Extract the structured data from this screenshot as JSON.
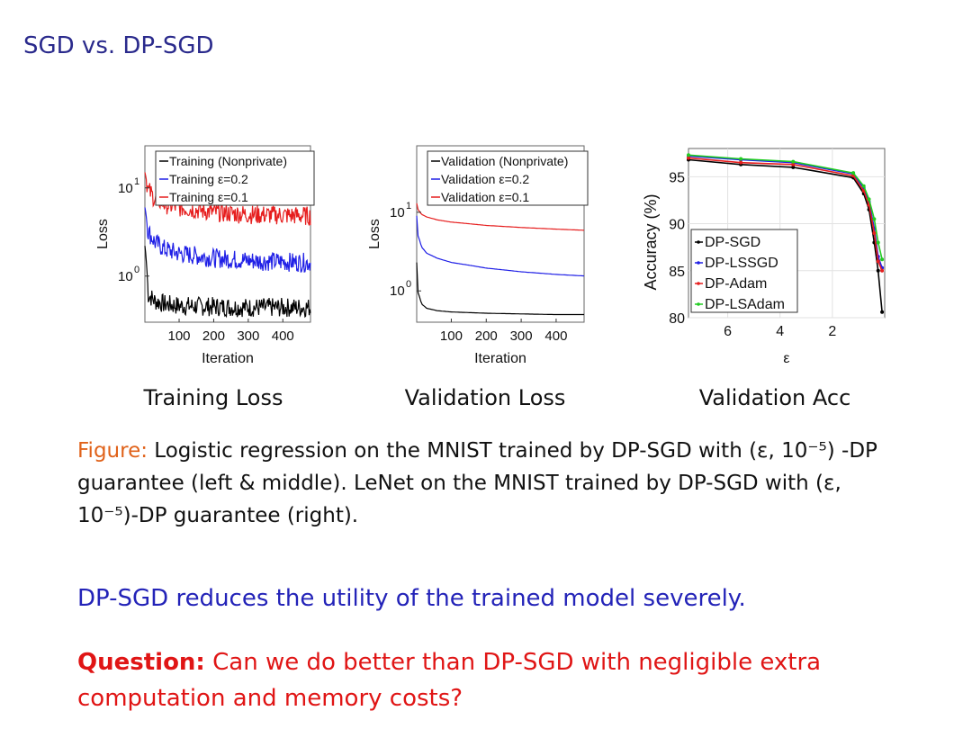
{
  "slide": {
    "title": "SGD vs. DP-SGD",
    "subplot_captions": [
      "Training Loss",
      "Validation Loss",
      "Validation Acc"
    ],
    "figure_caption_lead": "Figure:",
    "figure_caption_body": "Logistic regression on the MNIST trained by DP-SGD with (ε, 10⁻⁵) -DP guarantee (left & middle). LeNet on the MNIST trained by DP-SGD with (ε, 10⁻⁵)-DP guarantee (right).",
    "takeaway": "DP-SGD reduces the utility of the trained model severely.",
    "question_label": "Question:",
    "question_text": "Can we do better than DP-SGD with negligible extra computation and memory costs?"
  },
  "colors": {
    "title": "#2a2a8c",
    "caption_lead": "#e0621a",
    "takeaway": "#2323b8",
    "question": "#e01515"
  },
  "chart_data": [
    {
      "type": "line",
      "title": "Training Loss",
      "xlabel": "Iteration",
      "ylabel": "Loss",
      "yscale": "log",
      "xlim": [
        1,
        480
      ],
      "ylim": [
        0.3,
        30
      ],
      "xticks": [
        "100",
        "200",
        "300",
        "400"
      ],
      "yticks": [
        {
          "base": "10",
          "exp": "1",
          "value": 10
        },
        {
          "base": "10",
          "exp": "0",
          "value": 1
        }
      ],
      "legend_position": "top",
      "series": [
        {
          "name": "Training (Nonprivate)",
          "color": "#000000",
          "noisy": true,
          "x": [
            1,
            10,
            30,
            60,
            100,
            200,
            300,
            400,
            480
          ],
          "y": [
            2.2,
            0.62,
            0.52,
            0.48,
            0.46,
            0.45,
            0.44,
            0.44,
            0.44
          ]
        },
        {
          "name": "Training ε=0.2",
          "color": "#1f1fe6",
          "noisy": true,
          "x": [
            1,
            10,
            30,
            60,
            100,
            200,
            300,
            400,
            480
          ],
          "y": [
            6.0,
            3.2,
            2.4,
            2.0,
            1.8,
            1.6,
            1.5,
            1.45,
            1.42
          ]
        },
        {
          "name": "Training ε=0.1",
          "color": "#e61e1e",
          "noisy": true,
          "x": [
            1,
            10,
            30,
            60,
            100,
            200,
            300,
            400,
            480
          ],
          "y": [
            15.0,
            9.5,
            7.5,
            6.5,
            6.0,
            5.3,
            5.0,
            4.9,
            4.8
          ]
        }
      ]
    },
    {
      "type": "line",
      "title": "Validation Loss",
      "xlabel": "Iteration",
      "ylabel": "Loss",
      "yscale": "log",
      "xlim": [
        1,
        480
      ],
      "ylim": [
        0.4,
        70
      ],
      "xticks": [
        "100",
        "200",
        "300",
        "400"
      ],
      "yticks": [
        {
          "base": "10",
          "exp": "1",
          "value": 10
        },
        {
          "base": "10",
          "exp": "0",
          "value": 1
        }
      ],
      "legend_position": "top",
      "series": [
        {
          "name": "Validation (Nonprivate)",
          "color": "#000000",
          "noisy": false,
          "x": [
            1,
            5,
            15,
            30,
            60,
            100,
            200,
            300,
            400,
            480
          ],
          "y": [
            2.3,
            0.95,
            0.68,
            0.6,
            0.56,
            0.54,
            0.52,
            0.51,
            0.5,
            0.5
          ]
        },
        {
          "name": "Validation ε=0.2",
          "color": "#1f1fe6",
          "noisy": false,
          "x": [
            1,
            5,
            15,
            30,
            60,
            100,
            200,
            300,
            400,
            480
          ],
          "y": [
            9.0,
            5.0,
            3.6,
            3.0,
            2.6,
            2.3,
            1.95,
            1.75,
            1.62,
            1.55
          ]
        },
        {
          "name": "Validation ε=0.1",
          "color": "#e61e1e",
          "noisy": false,
          "x": [
            1,
            5,
            15,
            30,
            60,
            100,
            200,
            300,
            400,
            480
          ],
          "y": [
            13.0,
            10.8,
            9.4,
            8.7,
            8.0,
            7.5,
            6.8,
            6.4,
            6.1,
            5.9
          ]
        }
      ]
    },
    {
      "type": "line",
      "title": "Validation Acc",
      "xlabel": "ε",
      "ylabel": "Accuracy (%)",
      "x_reversed": true,
      "xlim": [
        7.5,
        0
      ],
      "ylim": [
        80,
        98
      ],
      "xticks": [
        "6",
        "4",
        "2"
      ],
      "yticks": [
        "80",
        "85",
        "90",
        "95"
      ],
      "grid": true,
      "legend_position": "center-left",
      "series": [
        {
          "name": "DP-SGD",
          "color": "#000000",
          "x": [
            7.5,
            5.5,
            3.5,
            1.2,
            0.8,
            0.6,
            0.4,
            0.25,
            0.1
          ],
          "y": [
            96.8,
            96.3,
            96.0,
            94.9,
            93.2,
            91.5,
            88.0,
            85.0,
            80.6
          ]
        },
        {
          "name": "DP-LSSGD",
          "color": "#1f1fe6",
          "x": [
            7.5,
            5.5,
            3.5,
            1.2,
            0.8,
            0.6,
            0.4,
            0.25,
            0.1
          ],
          "y": [
            97.2,
            96.8,
            96.5,
            95.3,
            93.8,
            92.3,
            89.5,
            86.5,
            85.3
          ]
        },
        {
          "name": "DP-Adam",
          "color": "#e61e1e",
          "x": [
            7.5,
            5.5,
            3.5,
            1.2,
            0.8,
            0.6,
            0.4,
            0.25,
            0.1
          ],
          "y": [
            97.0,
            96.5,
            96.3,
            95.1,
            93.5,
            92.0,
            89.0,
            86.0,
            85.0
          ]
        },
        {
          "name": "DP-LSAdam",
          "color": "#22cc22",
          "x": [
            7.5,
            5.5,
            3.5,
            1.2,
            0.8,
            0.6,
            0.4,
            0.25,
            0.1
          ],
          "y": [
            97.3,
            96.9,
            96.6,
            95.4,
            94.0,
            92.6,
            90.5,
            88.0,
            86.2
          ]
        }
      ]
    }
  ]
}
